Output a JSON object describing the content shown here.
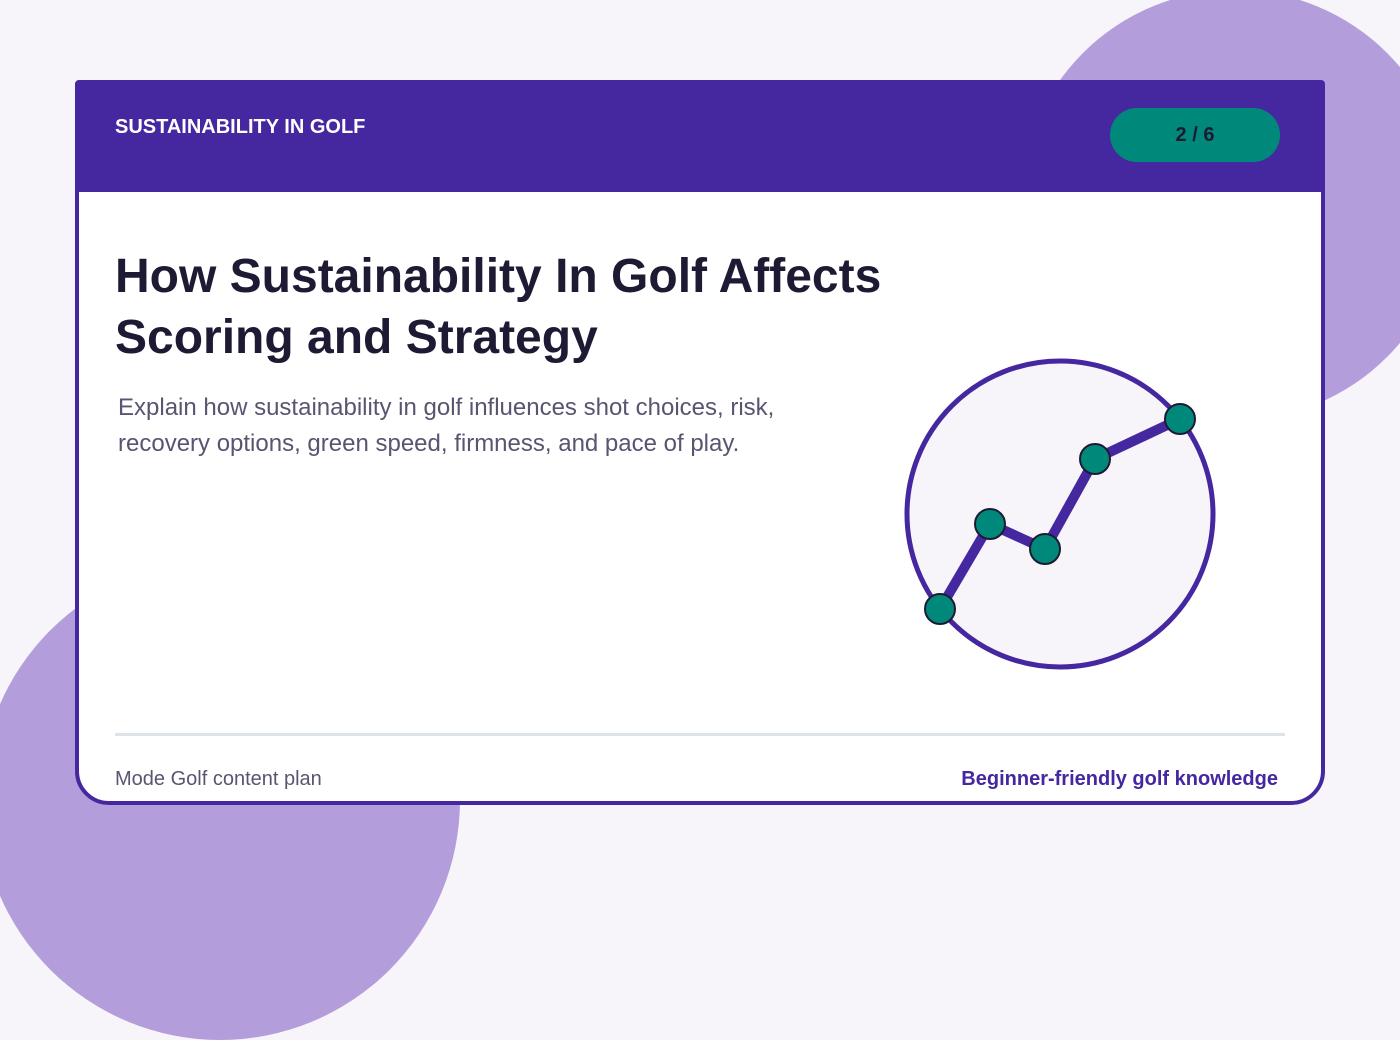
{
  "header": {
    "label": "SUSTAINABILITY IN GOLF",
    "page": "2 / 6"
  },
  "title": "How Sustainability In Golf Affects Scoring and Strategy",
  "subtitle": "Explain how sustainability in golf influences shot choices, risk, recovery options, green speed, firmness, and pace of play.",
  "footer": {
    "left": "Mode Golf content plan",
    "right": "Beginner-friendly golf knowledge"
  }
}
